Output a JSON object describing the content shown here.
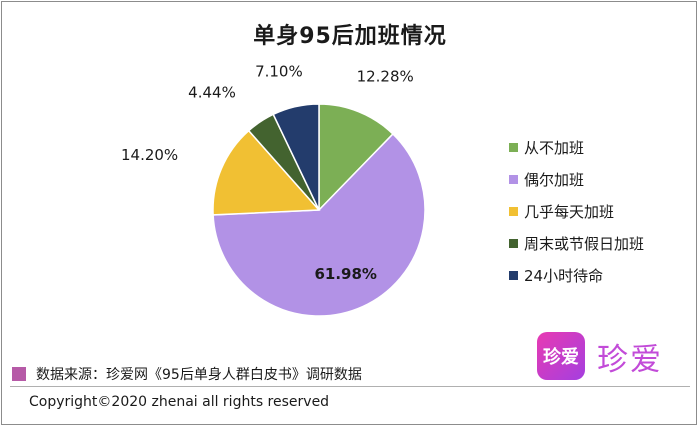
{
  "chart_data": {
    "type": "pie",
    "title": "单身95后加班情况",
    "categories": [
      "从不加班",
      "偶尔加班",
      "几乎每天加班",
      "周末或节假日加班",
      "24小时待命"
    ],
    "values": [
      12.28,
      61.98,
      14.2,
      4.44,
      7.1
    ],
    "labels": [
      "12.28%",
      "61.98%",
      "14.20%",
      "4.44%",
      "7.10%"
    ],
    "colors": [
      "#7caf55",
      "#b292e6",
      "#f1c033",
      "#43632f",
      "#233c6c"
    ],
    "legend_position": "right"
  },
  "source": {
    "text": "数据来源：珍爱网《95后单身人群白皮书》调研数据",
    "color": "#b65aa7"
  },
  "copyright": "Copyright©2020 zhenai all rights reserved",
  "logo": {
    "mark": "珍爱",
    "text": "珍爱"
  }
}
